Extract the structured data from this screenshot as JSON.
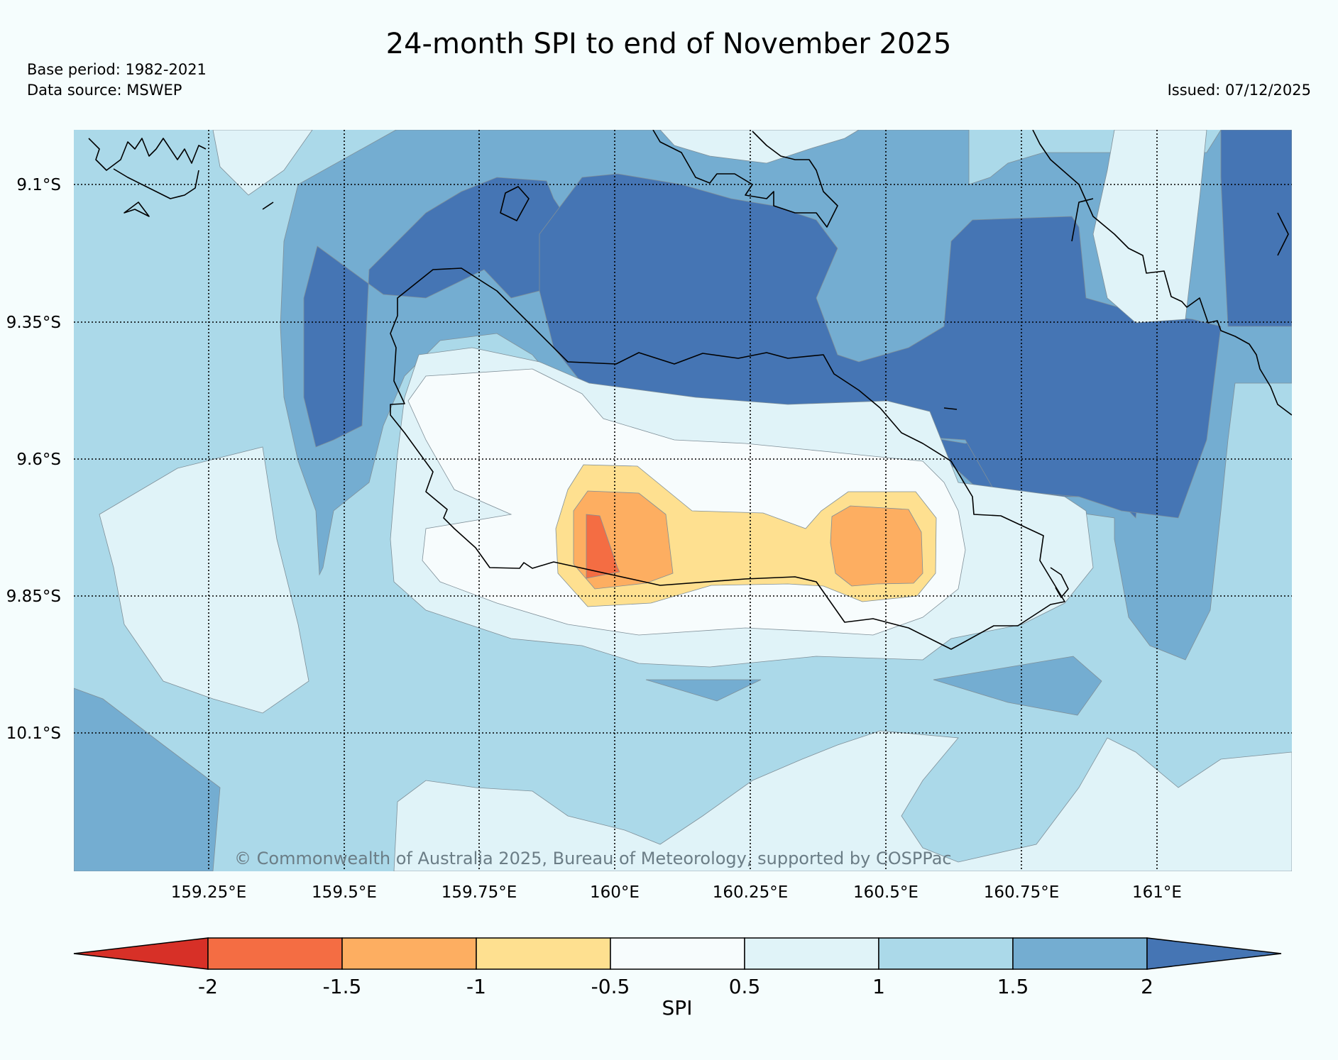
{
  "header": {
    "title": "24-month SPI to end of November 2025",
    "base_period": "Base period: 1982-2021",
    "data_source": "Data source: MSWEP",
    "issued": "Issued: 07/12/2025"
  },
  "map": {
    "lat_labels": [
      "9.1°S",
      "9.35°S",
      "9.6°S",
      "9.85°S",
      "10.1°S"
    ],
    "lon_labels": [
      "159.25°E",
      "159.5°E",
      "159.75°E",
      "160°E",
      "160.25°E",
      "160.5°E",
      "160.75°E",
      "161°E"
    ],
    "credit": "© Commonwealth of Australia 2025, Bureau of Meteorology, supported by COSPPac"
  },
  "colorbar": {
    "label": "SPI",
    "ticks": [
      "-2",
      "-1.5",
      "-1",
      "-0.5",
      "0.5",
      "1",
      "1.5",
      "2"
    ],
    "colors": [
      "#d73027",
      "#f46d43",
      "#fdae61",
      "#fee090",
      "#f7fcfd",
      "#e0f3f8",
      "#abd9e9",
      "#74add1",
      "#4575b4"
    ]
  }
}
